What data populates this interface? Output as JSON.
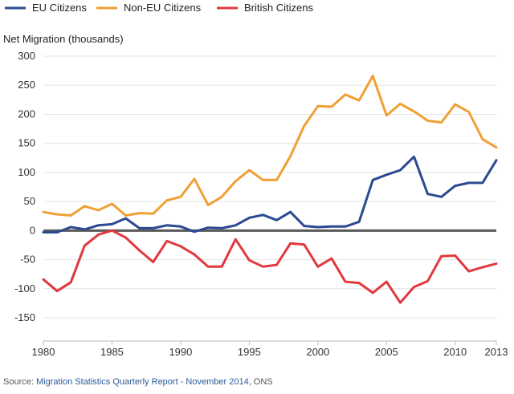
{
  "chart_data": {
    "type": "line",
    "title": "",
    "xlabel": "",
    "ylabel": "Net Migration (thousands)",
    "xlim": [
      1980,
      2013
    ],
    "ylim": [
      -190,
      300
    ],
    "x_ticks": [
      1980,
      1985,
      1990,
      1995,
      2000,
      2005,
      2010,
      2013
    ],
    "y_ticks": [
      300,
      250,
      200,
      150,
      100,
      50,
      0,
      -50,
      -100,
      -150
    ],
    "grid": "horizontal",
    "legend_position": "top-left",
    "x": [
      1980,
      1981,
      1982,
      1983,
      1984,
      1985,
      1986,
      1987,
      1988,
      1989,
      1990,
      1991,
      1992,
      1993,
      1994,
      1995,
      1996,
      1997,
      1998,
      1999,
      2000,
      2001,
      2002,
      2003,
      2004,
      2005,
      2006,
      2007,
      2008,
      2009,
      2010,
      2011,
      2012,
      2013
    ],
    "series": [
      {
        "name": "EU Citizens",
        "color": "#2c4a91",
        "values": [
          -3,
          -3,
          6,
          2,
          9,
          11,
          21,
          4,
          4,
          9,
          7,
          -2,
          5,
          4,
          9,
          22,
          27,
          18,
          32,
          8,
          6,
          7,
          7,
          15,
          87,
          96,
          104,
          127,
          63,
          58,
          77,
          82,
          82,
          121
        ]
      },
      {
        "name": "Non-EU Citizens",
        "color": "#f0a035",
        "values": [
          32,
          28,
          26,
          42,
          35,
          46,
          26,
          30,
          29,
          52,
          58,
          89,
          44,
          58,
          85,
          104,
          87,
          87,
          128,
          180,
          214,
          213,
          234,
          224,
          266,
          198,
          218,
          205,
          189,
          186,
          217,
          204,
          157,
          143
        ]
      },
      {
        "name": "British Citizens",
        "color": "#e0393e",
        "values": [
          -84,
          -104,
          -89,
          -26,
          -7,
          0,
          -12,
          -34,
          -54,
          -18,
          -27,
          -41,
          -62,
          -62,
          -15,
          -51,
          -62,
          -59,
          -22,
          -24,
          -62,
          -48,
          -88,
          -90,
          -107,
          -88,
          -124,
          -97,
          -87,
          -44,
          -43,
          -70,
          -63,
          -57
        ]
      }
    ]
  },
  "source": {
    "prefix": "Source: ",
    "link_text": "Migration Statistics Quarterly Report - November 2014",
    "suffix": ", ONS"
  }
}
